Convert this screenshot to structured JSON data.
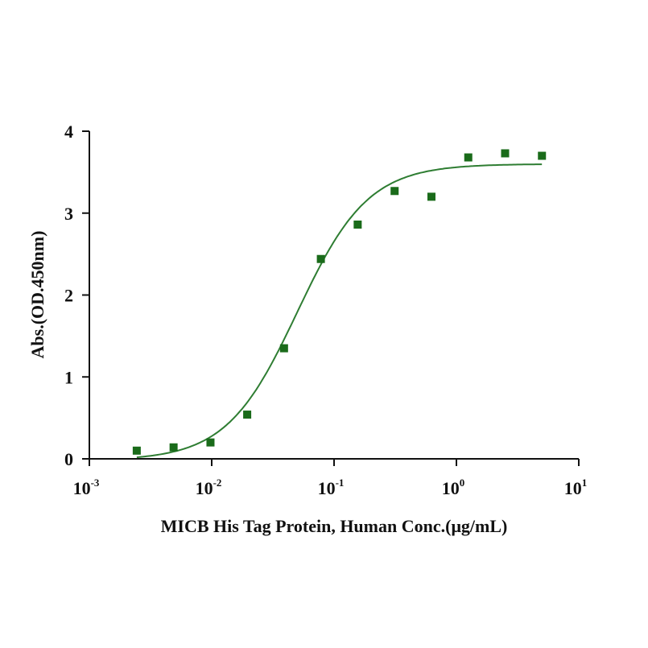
{
  "chart_data": {
    "type": "scatter",
    "title": "",
    "xlabel": "MICB His Tag Protein, Human Conc.(μg/mL)",
    "ylabel": "Abs.(OD.450nm)",
    "xscale": "log",
    "xlim": [
      0.001,
      10
    ],
    "ylim": [
      0,
      4
    ],
    "x_ticks": [
      {
        "base": "10",
        "exp": "-3",
        "value": 0.001
      },
      {
        "base": "10",
        "exp": "-2",
        "value": 0.01
      },
      {
        "base": "10",
        "exp": "-1",
        "value": 0.1
      },
      {
        "base": "10",
        "exp": "0",
        "value": 1
      },
      {
        "base": "10",
        "exp": "1",
        "value": 10
      }
    ],
    "y_ticks": [
      "0",
      "1",
      "2",
      "3",
      "4"
    ],
    "grid": false,
    "series": [
      {
        "name": "MICB His Tag Protein, Human",
        "color": "#1a6b1a",
        "marker": "square",
        "x": [
          0.00244,
          0.00488,
          0.00977,
          0.0195,
          0.039,
          0.078,
          0.156,
          0.3125,
          0.625,
          1.25,
          2.5,
          5
        ],
        "y": [
          0.1,
          0.14,
          0.2,
          0.54,
          1.35,
          2.44,
          2.86,
          3.27,
          3.2,
          3.68,
          3.73,
          3.7
        ]
      }
    ],
    "fit": {
      "type": "4PL",
      "bottom": -0.02,
      "top": 3.6,
      "ec50": 0.05,
      "hill": 1.5,
      "x_range": [
        0.00244,
        5
      ],
      "color": "#2e7d32"
    }
  }
}
